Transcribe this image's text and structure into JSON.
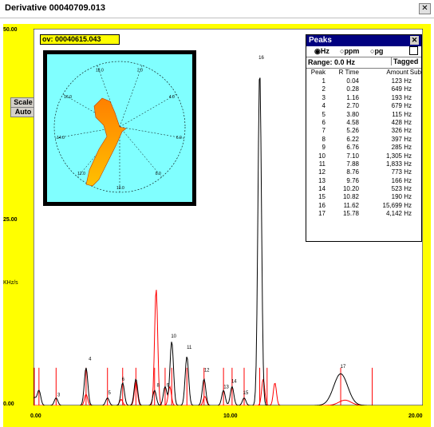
{
  "window": {
    "title": "Derivative   00040709.013",
    "close_glyph": "✕"
  },
  "plot": {
    "y_labels": [
      "50.00",
      "25.00",
      "0.00"
    ],
    "y_unit": "KHz/s",
    "x_labels": [
      "0.00",
      "10.00",
      "20.00"
    ],
    "ov_label": "ov: 00040615.043",
    "scale_button": "Scale",
    "auto_button": "Auto"
  },
  "polar": {
    "labels": [
      "2.0",
      "4.0",
      "6.0",
      "8.0",
      "10.0",
      "12.0",
      "14.0",
      "16.0",
      "18.0"
    ]
  },
  "peaks_panel": {
    "title": "Peaks",
    "close_glyph": "✕",
    "units": [
      "Hz",
      "ppm",
      "pg"
    ],
    "selected_unit": "Hz",
    "range_label": "Range: 0.0 Hz",
    "tagged_label": "Tagged",
    "columns": [
      "Peak",
      "R Time",
      "Amount",
      "Sub"
    ],
    "rows": [
      [
        "1",
        "0.04",
        "123 Hz"
      ],
      [
        "2",
        "0.28",
        "649 Hz"
      ],
      [
        "3",
        "1.16",
        "193 Hz"
      ],
      [
        "4",
        "2.70",
        "679 Hz"
      ],
      [
        "5",
        "3.80",
        "115 Hz"
      ],
      [
        "6",
        "4.58",
        "428 Hz"
      ],
      [
        "7",
        "5.26",
        "326 Hz"
      ],
      [
        "8",
        "6.22",
        "397 Hz"
      ],
      [
        "9",
        "6.76",
        "285 Hz"
      ],
      [
        "10",
        "7.10",
        "1,305 Hz"
      ],
      [
        "11",
        "7.88",
        "1,833 Hz"
      ],
      [
        "12",
        "8.76",
        "773 Hz"
      ],
      [
        "13",
        "9.76",
        "166 Hz"
      ],
      [
        "14",
        "10.20",
        "523 Hz"
      ],
      [
        "15",
        "10.82",
        "190 Hz"
      ],
      [
        "16",
        "11.62",
        "15,699 Hz"
      ],
      [
        "17",
        "15.78",
        "4,142 Hz"
      ]
    ]
  },
  "chart_data": {
    "type": "line",
    "xlim": [
      0,
      20
    ],
    "ylim": [
      0,
      50
    ],
    "ylabel": "KHz/s",
    "peak_labels": [
      {
        "label": "3",
        "x": 1.3,
        "y": 1.2
      },
      {
        "label": "4",
        "x": 2.9,
        "y": 6.0
      },
      {
        "label": "5",
        "x": 3.9,
        "y": 1.5
      },
      {
        "label": "6",
        "x": 4.6,
        "y": 3.3
      },
      {
        "label": "8",
        "x": 6.4,
        "y": 2.5
      },
      {
        "label": "9",
        "x": 6.9,
        "y": 2.5
      },
      {
        "label": "10",
        "x": 7.2,
        "y": 9.0
      },
      {
        "label": "11",
        "x": 8.0,
        "y": 7.5
      },
      {
        "label": "12",
        "x": 8.9,
        "y": 4.5
      },
      {
        "label": "13",
        "x": 9.9,
        "y": 2.3
      },
      {
        "label": "14",
        "x": 10.3,
        "y": 3.0
      },
      {
        "label": "15",
        "x": 10.9,
        "y": 1.5
      },
      {
        "label": "16",
        "x": 11.7,
        "y": 46.0
      },
      {
        "label": "17",
        "x": 15.9,
        "y": 5.0
      }
    ],
    "series": [
      {
        "color": "#000000",
        "peaks": [
          [
            0.04,
            1.0
          ],
          [
            0.28,
            2.0
          ],
          [
            1.16,
            1.0
          ],
          [
            2.7,
            5.0
          ],
          [
            3.8,
            1.0
          ],
          [
            4.58,
            3.0
          ],
          [
            5.26,
            3.5
          ],
          [
            6.22,
            2.0
          ],
          [
            6.76,
            2.5
          ],
          [
            7.1,
            8.5
          ],
          [
            7.88,
            6.5
          ],
          [
            8.76,
            3.5
          ],
          [
            9.76,
            2.0
          ],
          [
            10.2,
            2.5
          ],
          [
            10.82,
            1.0
          ],
          [
            11.62,
            44.5
          ],
          [
            15.78,
            4.2
          ]
        ]
      },
      {
        "color": "#ff0000",
        "peaks": [
          [
            2.7,
            1.5
          ],
          [
            4.5,
            0.8
          ],
          [
            5.26,
            3.0
          ],
          [
            6.3,
            15.5
          ],
          [
            7.0,
            2.5
          ],
          [
            8.8,
            1.2
          ],
          [
            11.8,
            3.5
          ],
          [
            12.4,
            3.0
          ],
          [
            16.0,
            0.7
          ]
        ]
      }
    ],
    "markers_x": [
      0.04,
      0.28,
      1.16,
      2.7,
      3.8,
      4.58,
      5.26,
      6.22,
      6.76,
      7.1,
      7.88,
      8.76,
      9.76,
      10.2,
      10.82,
      11.62,
      12.0,
      15.78,
      17.4
    ]
  }
}
